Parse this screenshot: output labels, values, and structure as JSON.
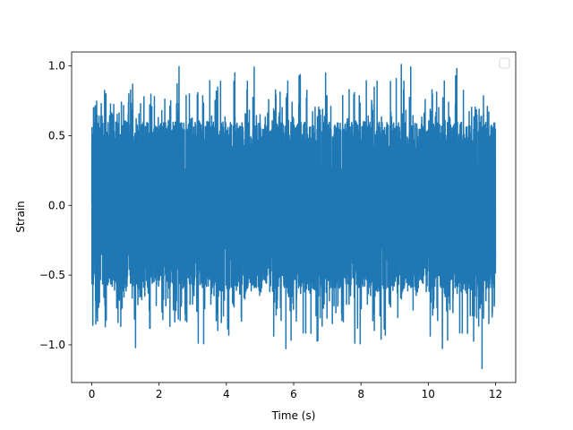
{
  "chart_data": {
    "type": "line",
    "title": "",
    "xlabel": "Time (s)",
    "ylabel": "Strain",
    "xlim": [
      -0.6,
      12.6
    ],
    "ylim": [
      -1.27,
      1.1
    ],
    "x_ticks": [
      0,
      2,
      4,
      6,
      8,
      10,
      12
    ],
    "x_tick_labels": [
      "0",
      "2",
      "4",
      "6",
      "8",
      "10",
      "12"
    ],
    "y_ticks": [
      -1.0,
      -0.5,
      0.0,
      0.5,
      1.0
    ],
    "y_tick_labels": [
      "−1.0",
      "−0.5",
      "0.0",
      "0.5",
      "1.0"
    ],
    "grid": false,
    "legend": {
      "placement": "top-right",
      "entries": []
    },
    "colors": {
      "series": "#1f77b4"
    },
    "series": [
      {
        "x_start": 0,
        "x_end": 12,
        "samples": 6000,
        "typical_range": [
          -0.6,
          0.6
        ],
        "spikes": [
          {
            "x": 0.03,
            "y": -0.86
          },
          {
            "x": 0.05,
            "y": 0.7
          },
          {
            "x": 0.12,
            "y": -0.85
          },
          {
            "x": 0.28,
            "y": 0.73
          },
          {
            "x": 0.4,
            "y": -0.87
          },
          {
            "x": 0.42,
            "y": 0.8
          },
          {
            "x": 0.62,
            "y": 0.65
          },
          {
            "x": 0.78,
            "y": -0.84
          },
          {
            "x": 0.88,
            "y": 0.74
          },
          {
            "x": 1.1,
            "y": 0.8
          },
          {
            "x": 1.3,
            "y": -1.02
          },
          {
            "x": 1.55,
            "y": 0.78
          },
          {
            "x": 1.72,
            "y": -0.88
          },
          {
            "x": 2.08,
            "y": 0.68
          },
          {
            "x": 2.2,
            "y": -0.72
          },
          {
            "x": 2.52,
            "y": 0.73
          },
          {
            "x": 2.9,
            "y": 0.8
          },
          {
            "x": 3.12,
            "y": -0.76
          },
          {
            "x": 3.7,
            "y": 0.82
          },
          {
            "x": 3.85,
            "y": -0.84
          },
          {
            "x": 4.25,
            "y": 0.95
          },
          {
            "x": 4.45,
            "y": -0.83
          },
          {
            "x": 5.0,
            "y": 0.65
          },
          {
            "x": 5.8,
            "y": 0.8
          },
          {
            "x": 6.08,
            "y": -0.83
          },
          {
            "x": 6.38,
            "y": 0.77
          },
          {
            "x": 6.72,
            "y": -0.97
          },
          {
            "x": 6.95,
            "y": 0.95
          },
          {
            "x": 7.2,
            "y": -0.72
          },
          {
            "x": 7.65,
            "y": 0.83
          },
          {
            "x": 7.9,
            "y": -0.88
          },
          {
            "x": 8.35,
            "y": 0.68
          },
          {
            "x": 8.6,
            "y": -0.96
          },
          {
            "x": 9.05,
            "y": 0.91
          },
          {
            "x": 9.2,
            "y": 1.01
          },
          {
            "x": 9.55,
            "y": -0.75
          },
          {
            "x": 10.12,
            "y": 0.8
          },
          {
            "x": 10.42,
            "y": -0.84
          },
          {
            "x": 10.85,
            "y": 0.98
          },
          {
            "x": 11.25,
            "y": -0.79
          },
          {
            "x": 11.6,
            "y": -1.17
          },
          {
            "x": 11.8,
            "y": 0.67
          },
          {
            "x": 11.9,
            "y": -0.8
          }
        ]
      }
    ]
  }
}
